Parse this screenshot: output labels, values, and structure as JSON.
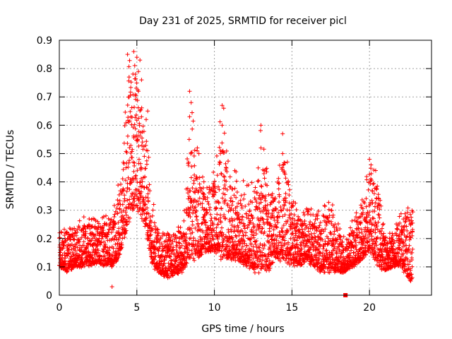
{
  "chart_data": {
    "type": "scatter",
    "title": "Day 231 of 2025, SRMTID for receiver picl",
    "xlabel": "GPS time / hours",
    "ylabel": "SRMTID / TECUs",
    "xlim": [
      0,
      24
    ],
    "ylim": [
      0,
      0.9
    ],
    "xticks": [
      0,
      5,
      10,
      15,
      20
    ],
    "yticks": [
      0,
      0.1,
      0.2,
      0.3,
      0.4,
      0.5,
      0.6,
      0.7,
      0.8,
      0.9
    ],
    "grid": true,
    "marker": "plus",
    "color": "#ff0000",
    "outlier": {
      "x": 18.45,
      "y": 0.0,
      "marker": "square"
    },
    "envelope": {
      "note": "dense scatter of SRMTID samples, one every few minutes; values summarised as [hour, typical low, typical high]",
      "points": [
        [
          0.0,
          0.1,
          0.22
        ],
        [
          0.5,
          0.08,
          0.25
        ],
        [
          1.0,
          0.09,
          0.26
        ],
        [
          1.5,
          0.1,
          0.28
        ],
        [
          2.0,
          0.1,
          0.27
        ],
        [
          2.5,
          0.11,
          0.29
        ],
        [
          3.0,
          0.1,
          0.3
        ],
        [
          3.5,
          0.1,
          0.32
        ],
        [
          4.0,
          0.15,
          0.45
        ],
        [
          4.5,
          0.25,
          0.85
        ],
        [
          5.0,
          0.3,
          0.86
        ],
        [
          5.5,
          0.25,
          0.65
        ],
        [
          6.0,
          0.1,
          0.35
        ],
        [
          6.5,
          0.07,
          0.22
        ],
        [
          7.0,
          0.06,
          0.22
        ],
        [
          7.5,
          0.07,
          0.24
        ],
        [
          8.0,
          0.08,
          0.3
        ],
        [
          8.5,
          0.12,
          0.72
        ],
        [
          9.0,
          0.12,
          0.45
        ],
        [
          9.5,
          0.15,
          0.4
        ],
        [
          10.0,
          0.15,
          0.45
        ],
        [
          10.5,
          0.12,
          0.68
        ],
        [
          11.0,
          0.12,
          0.43
        ],
        [
          11.5,
          0.12,
          0.45
        ],
        [
          12.0,
          0.1,
          0.4
        ],
        [
          12.5,
          0.08,
          0.4
        ],
        [
          13.0,
          0.06,
          0.6
        ],
        [
          13.5,
          0.08,
          0.4
        ],
        [
          14.0,
          0.12,
          0.38
        ],
        [
          14.5,
          0.12,
          0.57
        ],
        [
          15.0,
          0.1,
          0.35
        ],
        [
          15.5,
          0.1,
          0.3
        ],
        [
          16.0,
          0.12,
          0.32
        ],
        [
          16.5,
          0.08,
          0.34
        ],
        [
          17.0,
          0.08,
          0.33
        ],
        [
          17.5,
          0.08,
          0.35
        ],
        [
          18.0,
          0.08,
          0.25
        ],
        [
          18.5,
          0.08,
          0.2
        ],
        [
          19.0,
          0.1,
          0.3
        ],
        [
          19.5,
          0.12,
          0.35
        ],
        [
          20.0,
          0.15,
          0.48
        ],
        [
          20.5,
          0.1,
          0.44
        ],
        [
          21.0,
          0.08,
          0.22
        ],
        [
          21.5,
          0.1,
          0.22
        ],
        [
          22.0,
          0.1,
          0.3
        ],
        [
          22.5,
          0.05,
          0.32
        ],
        [
          22.8,
          0.05,
          0.3
        ]
      ]
    },
    "spikes": [
      [
        4.4,
        0.85
      ],
      [
        4.8,
        0.86
      ],
      [
        5.0,
        0.84
      ],
      [
        5.2,
        0.83
      ],
      [
        5.1,
        0.72
      ],
      [
        4.9,
        0.78
      ],
      [
        5.3,
        0.76
      ],
      [
        4.5,
        0.77
      ],
      [
        5.7,
        0.65
      ],
      [
        5.6,
        0.62
      ],
      [
        8.4,
        0.72
      ],
      [
        8.5,
        0.68
      ],
      [
        8.4,
        0.63
      ],
      [
        8.9,
        0.52
      ],
      [
        9.0,
        0.5
      ],
      [
        10.5,
        0.67
      ],
      [
        10.6,
        0.66
      ],
      [
        10.5,
        0.6
      ],
      [
        10.4,
        0.51
      ],
      [
        13.0,
        0.6
      ],
      [
        13.0,
        0.52
      ],
      [
        14.4,
        0.57
      ],
      [
        14.4,
        0.5
      ],
      [
        20.0,
        0.48
      ],
      [
        20.1,
        0.46
      ],
      [
        20.4,
        0.44
      ],
      [
        3.4,
        0.03
      ]
    ]
  }
}
